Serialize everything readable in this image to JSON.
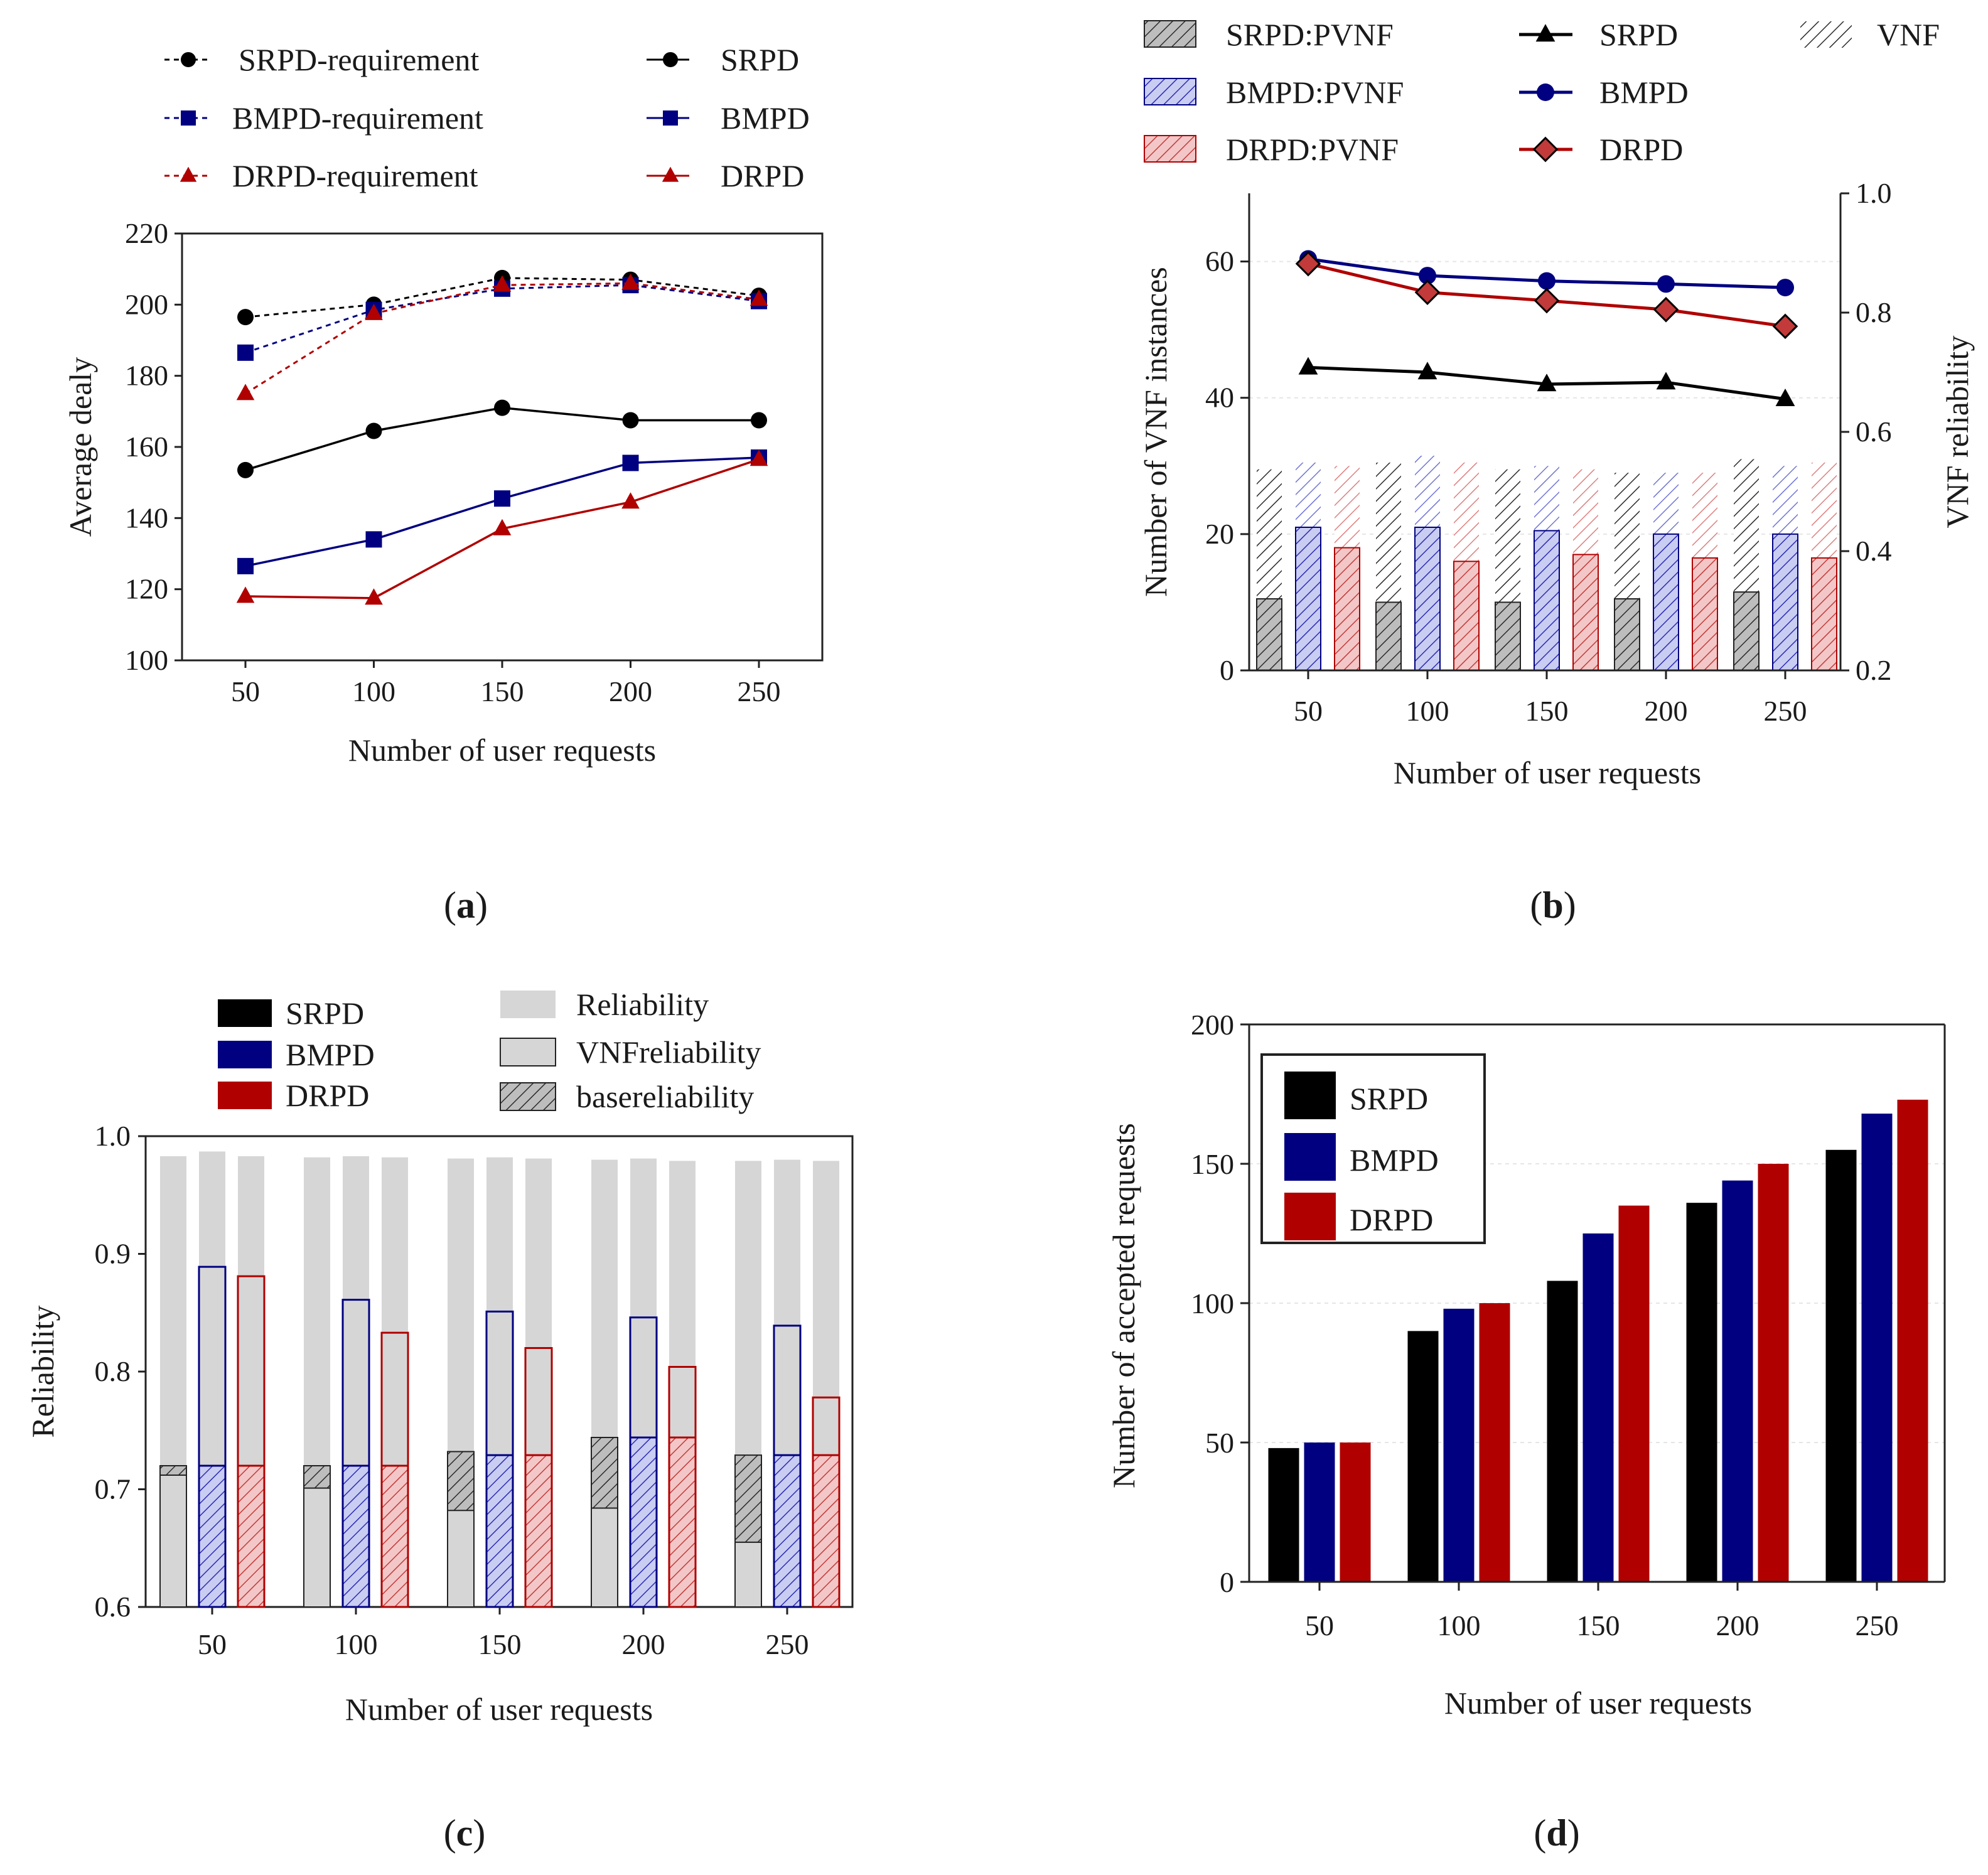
{
  "colors": {
    "srpd": "#000000",
    "bmpd": "#000080",
    "drpd": "#b00000",
    "reliability_gray": "#d6d6d6",
    "hatch_gray": "#444444"
  },
  "chart_data": [
    {
      "panel": "a",
      "type": "line",
      "panel_label": {
        "open": "(",
        "letter": "a",
        "close": ")"
      },
      "xlabel": "Number of user requests",
      "ylabel": "Average dealy",
      "categories": [
        "50",
        "100",
        "150",
        "200",
        "250"
      ],
      "ylim": [
        100,
        220
      ],
      "yticks": [
        "100",
        "120",
        "140",
        "160",
        "180",
        "200",
        "220"
      ],
      "series": [
        {
          "key": "srpd_req",
          "name": "SRPD-requirement",
          "color": "srpd",
          "dashed": true,
          "marker": "circle",
          "values": [
            196.5,
            200,
            207.5,
            207,
            202.5
          ]
        },
        {
          "key": "bmpd_req",
          "name": "BMPD-requirement",
          "color": "bmpd",
          "dashed": true,
          "marker": "square",
          "values": [
            186.5,
            198.5,
            204.5,
            205.5,
            201
          ]
        },
        {
          "key": "drpd_req",
          "name": "DRPD-requirement",
          "color": "drpd",
          "dashed": true,
          "marker": "triangle",
          "values": [
            175,
            197.5,
            205.5,
            206,
            201.5
          ]
        },
        {
          "key": "srpd",
          "name": "SRPD",
          "color": "srpd",
          "dashed": false,
          "marker": "circle",
          "values": [
            153.5,
            164.5,
            171,
            167.5,
            167.5
          ]
        },
        {
          "key": "bmpd",
          "name": "BMPD",
          "color": "bmpd",
          "dashed": false,
          "marker": "square",
          "values": [
            126.5,
            134,
            145.5,
            155.5,
            157
          ]
        },
        {
          "key": "drpd",
          "name": "DRPD",
          "color": "drpd",
          "dashed": false,
          "marker": "triangle",
          "values": [
            118,
            117.5,
            137,
            144.5,
            156.5
          ]
        }
      ]
    },
    {
      "panel": "b",
      "type": "bar",
      "panel_label": {
        "open": "(",
        "letter": "b",
        "close": ")"
      },
      "xlabel": "Number of user requests",
      "ylabel": "Number of VNF instances",
      "y2label": "VNF reliability",
      "categories": [
        "50",
        "100",
        "150",
        "200",
        "250"
      ],
      "ylim": [
        0,
        70
      ],
      "yticks": [
        "0",
        "20",
        "40",
        "60"
      ],
      "y2lim": [
        0.2,
        1.0
      ],
      "y2ticks": [
        "0.2",
        "0.4",
        "0.6",
        "0.8",
        "1.0"
      ],
      "bars": [
        {
          "name": "SRPD:PVNF",
          "color": "srpd",
          "vnf": [
            29.5,
            30.5,
            29.5,
            29,
            31
          ],
          "pvnf": [
            10.5,
            10,
            10,
            10.5,
            11.5
          ]
        },
        {
          "name": "BMPD:PVNF",
          "color": "bmpd",
          "vnf": [
            30.5,
            31.5,
            30,
            29,
            30
          ],
          "pvnf": [
            21,
            21,
            20.5,
            20,
            20
          ]
        },
        {
          "name": "DRPD:PVNF",
          "color": "drpd",
          "vnf": [
            30,
            30.5,
            29.5,
            29,
            30.5
          ],
          "pvnf": [
            18,
            16,
            17,
            16.5,
            16.5
          ]
        }
      ],
      "vnf_legend": "VNF",
      "lines": [
        {
          "name": "SRPD",
          "color": "srpd",
          "marker": "triangle",
          "values": [
            0.708,
            0.7,
            0.68,
            0.683,
            0.655
          ]
        },
        {
          "name": "BMPD",
          "color": "bmpd",
          "marker": "circle",
          "values": [
            0.89,
            0.862,
            0.853,
            0.848,
            0.842
          ]
        },
        {
          "name": "DRPD",
          "color": "drpd",
          "marker": "diamond",
          "values": [
            0.882,
            0.834,
            0.82,
            0.805,
            0.777
          ]
        }
      ]
    },
    {
      "panel": "c",
      "type": "bar",
      "panel_label": {
        "open": "(",
        "letter": "c",
        "close": ")"
      },
      "xlabel": "Number of user requests",
      "ylabel": "Reliability",
      "categories": [
        "50",
        "100",
        "150",
        "200",
        "250"
      ],
      "ylim": [
        0.6,
        1.0
      ],
      "yticks": [
        "0.6",
        "0.7",
        "0.8",
        "0.9",
        "1.0"
      ],
      "legend_algorithms": [
        "SRPD",
        "BMPD",
        "DRPD"
      ],
      "legend_components": [
        "Reliability",
        "VNFreliability",
        "basereliability"
      ],
      "series": [
        {
          "name": "SRPD",
          "color": "srpd",
          "reliability": [
            0.983,
            0.982,
            0.981,
            0.98,
            0.979
          ],
          "vnf": [
            0.712,
            0.701,
            0.682,
            0.684,
            0.655
          ],
          "base": [
            0.72,
            0.72,
            0.732,
            0.744,
            0.729
          ]
        },
        {
          "name": "BMPD",
          "color": "bmpd",
          "reliability": [
            0.987,
            0.983,
            0.982,
            0.981,
            0.98
          ],
          "vnf": [
            0.889,
            0.861,
            0.851,
            0.846,
            0.839
          ],
          "base": [
            0.72,
            0.72,
            0.729,
            0.744,
            0.729
          ]
        },
        {
          "name": "DRPD",
          "color": "drpd",
          "reliability": [
            0.983,
            0.982,
            0.981,
            0.979,
            0.979
          ],
          "vnf": [
            0.881,
            0.833,
            0.82,
            0.804,
            0.778
          ],
          "base": [
            0.72,
            0.72,
            0.729,
            0.744,
            0.729
          ]
        }
      ]
    },
    {
      "panel": "d",
      "type": "bar",
      "panel_label": {
        "open": "(",
        "letter": "d",
        "close": ")"
      },
      "xlabel": "Number of user requests",
      "ylabel": "Number of accepted requests",
      "categories": [
        "50",
        "100",
        "150",
        "200",
        "250"
      ],
      "ylim": [
        0,
        200
      ],
      "yticks": [
        "0",
        "50",
        "100",
        "150",
        "200"
      ],
      "series": [
        {
          "name": "SRPD",
          "color": "srpd",
          "values": [
            48,
            90,
            108,
            136,
            155
          ]
        },
        {
          "name": "BMPD",
          "color": "bmpd",
          "values": [
            50,
            98,
            125,
            144,
            168
          ]
        },
        {
          "name": "DRPD",
          "color": "drpd",
          "values": [
            50,
            100,
            135,
            150,
            173
          ]
        }
      ]
    }
  ]
}
